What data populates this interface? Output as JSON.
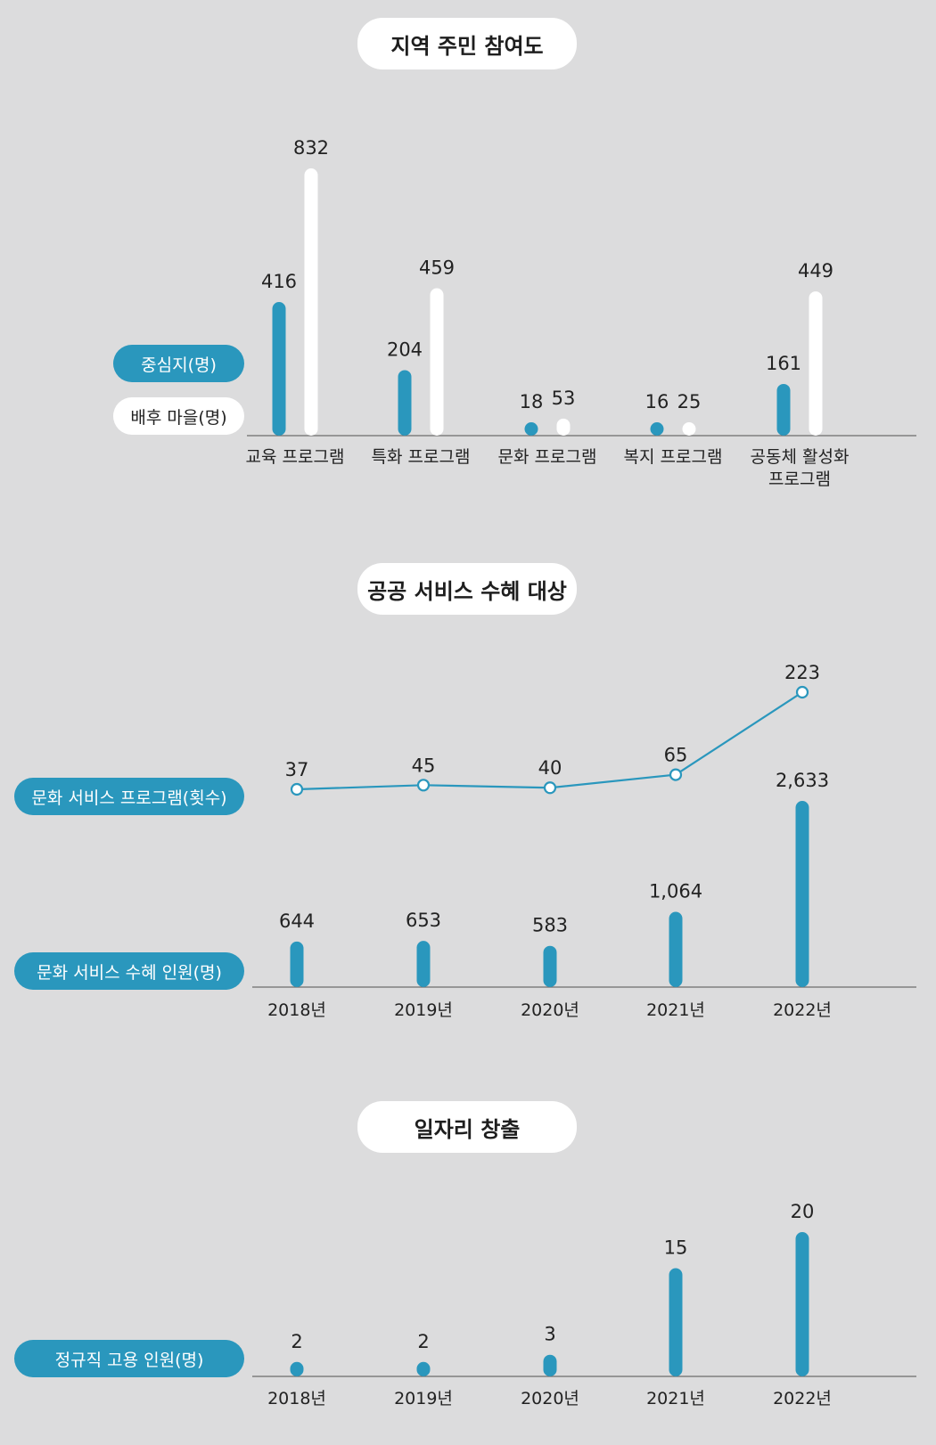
{
  "colors": {
    "background": "#dcdcdd",
    "primary": "#2a97bd",
    "secondary": "#ffffff",
    "axis": "#6b6b6b",
    "text": "#222222"
  },
  "chart_data": [
    {
      "type": "bar",
      "title": "지역 주민 참여도",
      "categories": [
        "교육 프로그램",
        "특화 프로그램",
        "문화 프로그램",
        "복지 프로그램",
        "공동체 활성화\n프로그램"
      ],
      "series": [
        {
          "name": "중심지(명)",
          "color": "#2a97bd",
          "values": [
            416,
            204,
            18,
            16,
            161
          ]
        },
        {
          "name": "배후 마을(명)",
          "color": "#ffffff",
          "values": [
            832,
            459,
            53,
            25,
            449
          ]
        }
      ],
      "ylim": [
        0,
        832
      ],
      "grid": false,
      "legend": "left"
    },
    {
      "type": "bar+line",
      "title": "공공 서비스 수혜 대상",
      "categories": [
        "2018년",
        "2019년",
        "2020년",
        "2021년",
        "2022년"
      ],
      "series": [
        {
          "name": "문화 서비스 프로그램(횟수)",
          "type": "line",
          "color": "#2a97bd",
          "values": [
            37,
            45,
            40,
            65,
            223
          ]
        },
        {
          "name": "문화 서비스 수혜 인원(명)",
          "type": "bar",
          "color": "#2a97bd",
          "values": [
            644,
            653,
            583,
            1064,
            2633
          ],
          "labels": [
            "644",
            "653",
            "583",
            "1,064",
            "2,633"
          ]
        }
      ],
      "ylim": [
        0,
        2633
      ],
      "grid": false,
      "legend": "left"
    },
    {
      "type": "bar",
      "title": "일자리 창출",
      "categories": [
        "2018년",
        "2019년",
        "2020년",
        "2021년",
        "2022년"
      ],
      "series": [
        {
          "name": "정규직 고용 인원(명)",
          "color": "#2a97bd",
          "values": [
            2,
            2,
            3,
            15,
            20
          ]
        }
      ],
      "ylim": [
        0,
        20
      ],
      "grid": false,
      "legend": "left"
    }
  ]
}
